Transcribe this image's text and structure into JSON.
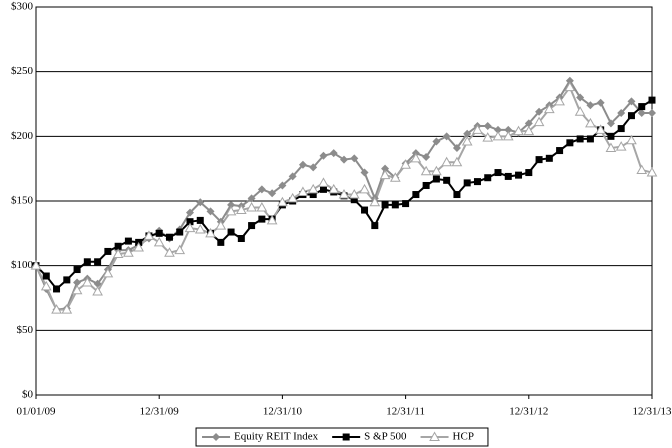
{
  "chart_data": {
    "type": "line",
    "categories": [
      "01/01/09",
      null,
      null,
      null,
      null,
      null,
      null,
      null,
      null,
      null,
      null,
      null,
      "12/31/09",
      null,
      null,
      null,
      null,
      null,
      null,
      null,
      null,
      null,
      null,
      null,
      "12/31/10",
      null,
      null,
      null,
      null,
      null,
      null,
      null,
      null,
      null,
      null,
      null,
      "12/31/11",
      null,
      null,
      null,
      null,
      null,
      null,
      null,
      null,
      null,
      null,
      null,
      "12/31/12",
      null,
      null,
      null,
      null,
      null,
      null,
      null,
      null,
      null,
      null,
      null,
      "12/31/13"
    ],
    "series": [
      {
        "name": "Equity REIT Index",
        "color": "#8c8c8c",
        "marker": "diamond",
        "values": [
          100,
          82,
          66,
          67,
          87,
          90,
          86,
          97,
          112,
          112,
          116,
          121,
          127,
          121,
          128,
          141,
          149,
          142,
          134,
          147,
          146,
          152,
          159,
          156,
          162,
          169,
          178,
          176,
          185,
          187,
          182,
          183,
          172,
          152,
          175,
          168,
          179,
          187,
          184,
          196,
          200,
          191,
          202,
          208,
          208,
          205,
          205,
          203,
          210,
          219,
          224,
          230,
          243,
          230,
          224,
          226,
          210,
          218,
          227,
          218,
          218
        ]
      },
      {
        "name": "S &P 500",
        "color": "#000000",
        "marker": "square",
        "values": [
          100,
          92,
          82,
          89,
          97,
          103,
          103,
          111,
          115,
          119,
          118,
          123,
          125,
          122,
          126,
          134,
          135,
          125,
          118,
          126,
          121,
          131,
          136,
          136,
          147,
          150,
          155,
          155,
          159,
          157,
          154,
          151,
          143,
          131,
          147,
          147,
          148,
          155,
          162,
          167,
          166,
          155,
          164,
          165,
          168,
          172,
          169,
          170,
          172,
          182,
          183,
          189,
          195,
          198,
          198,
          205,
          200,
          206,
          216,
          223,
          228
        ]
      },
      {
        "name": "HCP",
        "color": "#a6a6a6",
        "marker": "triangle",
        "values": [
          100,
          84,
          66,
          66,
          81,
          87,
          80,
          94,
          109,
          110,
          114,
          123,
          118,
          110,
          112,
          129,
          128,
          125,
          131,
          142,
          143,
          145,
          145,
          135,
          149,
          152,
          157,
          159,
          164,
          159,
          155,
          155,
          159,
          149,
          170,
          168,
          178,
          183,
          173,
          173,
          180,
          180,
          196,
          205,
          199,
          200,
          200,
          204,
          204,
          211,
          221,
          227,
          238,
          219,
          210,
          205,
          191,
          192,
          197,
          174,
          172
        ]
      }
    ],
    "ylim": [
      0,
      300
    ],
    "yticks": [
      {
        "value": 0,
        "label": "$0"
      },
      {
        "value": 50,
        "label": "$50"
      },
      {
        "value": 100,
        "label": "$100"
      },
      {
        "value": 150,
        "label": "$150"
      },
      {
        "value": 200,
        "label": "$200"
      },
      {
        "value": 250,
        "label": "$250"
      },
      {
        "value": 300,
        "label": "$300"
      }
    ],
    "grid": true,
    "legend": "bottom"
  }
}
